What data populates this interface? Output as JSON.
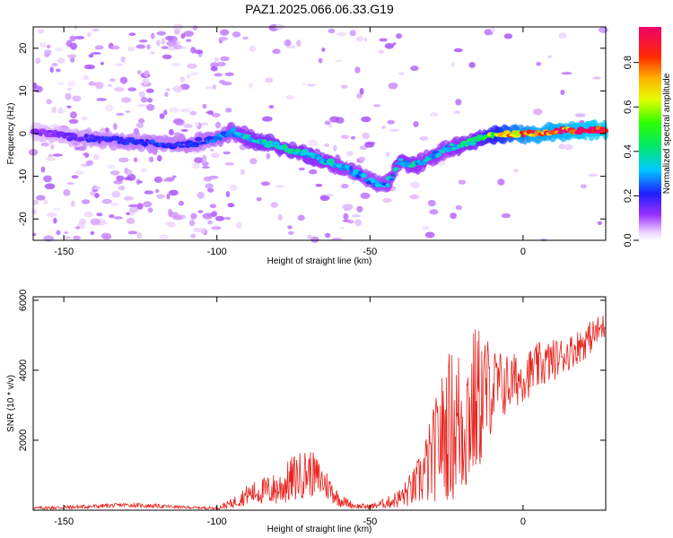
{
  "title": "PAZ1.2025.066.06.33.G19",
  "chart_data": [
    {
      "type": "heatmap",
      "title": "PAZ1.2025.066.06.33.G19",
      "xlabel": "Height of straight line (km)",
      "ylabel": "Frequency (Hz)",
      "xlim": [
        -160,
        27
      ],
      "ylim": [
        -25,
        25
      ],
      "xticks": [
        -150,
        -100,
        -50,
        0
      ],
      "yticks": [
        -20,
        -10,
        0,
        10,
        20
      ],
      "colorbar": {
        "label": "Normalized spectral amplitude",
        "range": [
          0,
          0.96
        ],
        "ticks": [
          0.0,
          0.2,
          0.4,
          0.6,
          0.8
        ],
        "colormap": "rainbow: white, violet, blue, cyan, green, yellow, orange, red, magenta"
      },
      "ridge": {
        "x": [
          -160,
          -150,
          -140,
          -130,
          -120,
          -110,
          -100,
          -95,
          -90,
          -85,
          -80,
          -75,
          -70,
          -65,
          -60,
          -55,
          -50,
          -45,
          -40,
          -35,
          -30,
          -25,
          -20,
          -15,
          -10,
          -5,
          0,
          5,
          10,
          15,
          20,
          27
        ],
        "frequency": [
          0.5,
          -0.5,
          -1.2,
          -1.8,
          -2.5,
          -2.5,
          -1.0,
          0.5,
          -1.0,
          -2.0,
          -3.0,
          -4.0,
          -5.0,
          -6.5,
          -7.5,
          -9.0,
          -11.0,
          -12.5,
          -6.5,
          -7.5,
          -5.5,
          -3.5,
          -2.5,
          -1.5,
          -0.5,
          0.0,
          0.0,
          0.0,
          0.5,
          0.7,
          0.8,
          1.0
        ],
        "amplitude": [
          0.12,
          0.15,
          0.2,
          0.22,
          0.22,
          0.22,
          0.25,
          0.3,
          0.35,
          0.38,
          0.38,
          0.36,
          0.36,
          0.34,
          0.32,
          0.3,
          0.3,
          0.3,
          0.35,
          0.34,
          0.32,
          0.32,
          0.36,
          0.42,
          0.55,
          0.7,
          0.8,
          0.85,
          0.85,
          0.88,
          0.9,
          0.92
        ]
      }
    },
    {
      "type": "line",
      "xlabel": "Height of straight line (km)",
      "ylabel": "SNR (10 * v/v)",
      "xlim": [
        -160,
        27
      ],
      "ylim": [
        0,
        6100
      ],
      "xticks": [
        -150,
        -100,
        -50,
        0
      ],
      "yticks": [
        2000,
        4000,
        6000
      ],
      "color": "#e8231d",
      "envelope": {
        "x": [
          -160,
          -150,
          -140,
          -130,
          -120,
          -110,
          -100,
          -95,
          -90,
          -85,
          -80,
          -75,
          -70,
          -65,
          -60,
          -55,
          -50,
          -45,
          -40,
          -35,
          -30,
          -27,
          -24,
          -20,
          -16,
          -13,
          -10,
          -5,
          0,
          5,
          10,
          15,
          20,
          27
        ],
        "mean": [
          60,
          80,
          110,
          150,
          120,
          80,
          60,
          200,
          450,
          550,
          600,
          900,
          1100,
          800,
          300,
          120,
          100,
          200,
          350,
          700,
          1400,
          2100,
          2400,
          2500,
          3000,
          3300,
          3500,
          3600,
          3800,
          4100,
          4300,
          4500,
          4800,
          5300
        ],
        "spread": [
          40,
          60,
          60,
          60,
          60,
          40,
          40,
          150,
          300,
          400,
          500,
          700,
          700,
          500,
          200,
          80,
          80,
          150,
          300,
          600,
          1300,
          1700,
          2200,
          2400,
          2300,
          2000,
          1200,
          900,
          700,
          700,
          600,
          500,
          500,
          400
        ]
      }
    }
  ]
}
